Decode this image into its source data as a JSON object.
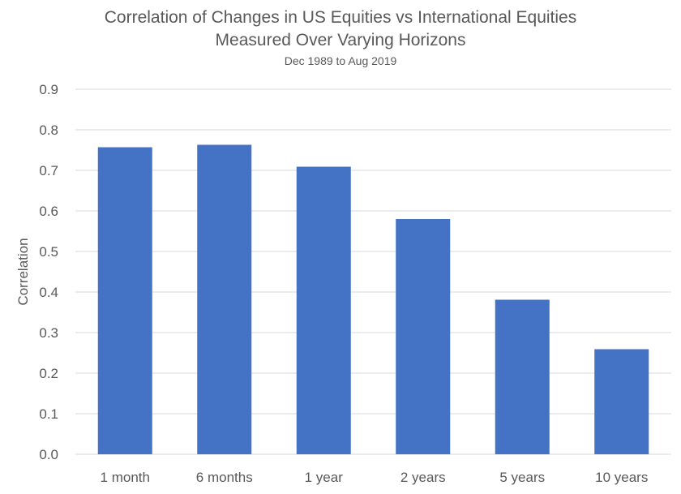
{
  "chart_data": {
    "type": "bar",
    "title_lines": [
      "Correlation of Changes in US Equities vs International Equities",
      "Measured Over Varying Horizons"
    ],
    "subtitle": "Dec 1989 to Aug 2019",
    "xlabel": "",
    "ylabel": "Correlation",
    "categories": [
      "1 month",
      "6 months",
      "1 year",
      "2 years",
      "5 years",
      "10 years"
    ],
    "values": [
      0.757,
      0.763,
      0.709,
      0.58,
      0.381,
      0.259
    ],
    "ylim": [
      0,
      0.9
    ],
    "yticks": [
      "0.0",
      "0.1",
      "0.2",
      "0.3",
      "0.4",
      "0.5",
      "0.6",
      "0.7",
      "0.8",
      "0.9"
    ],
    "grid": true,
    "legend": "none",
    "bar_color": "#4472C4",
    "grid_color": "#D9D9D9"
  }
}
